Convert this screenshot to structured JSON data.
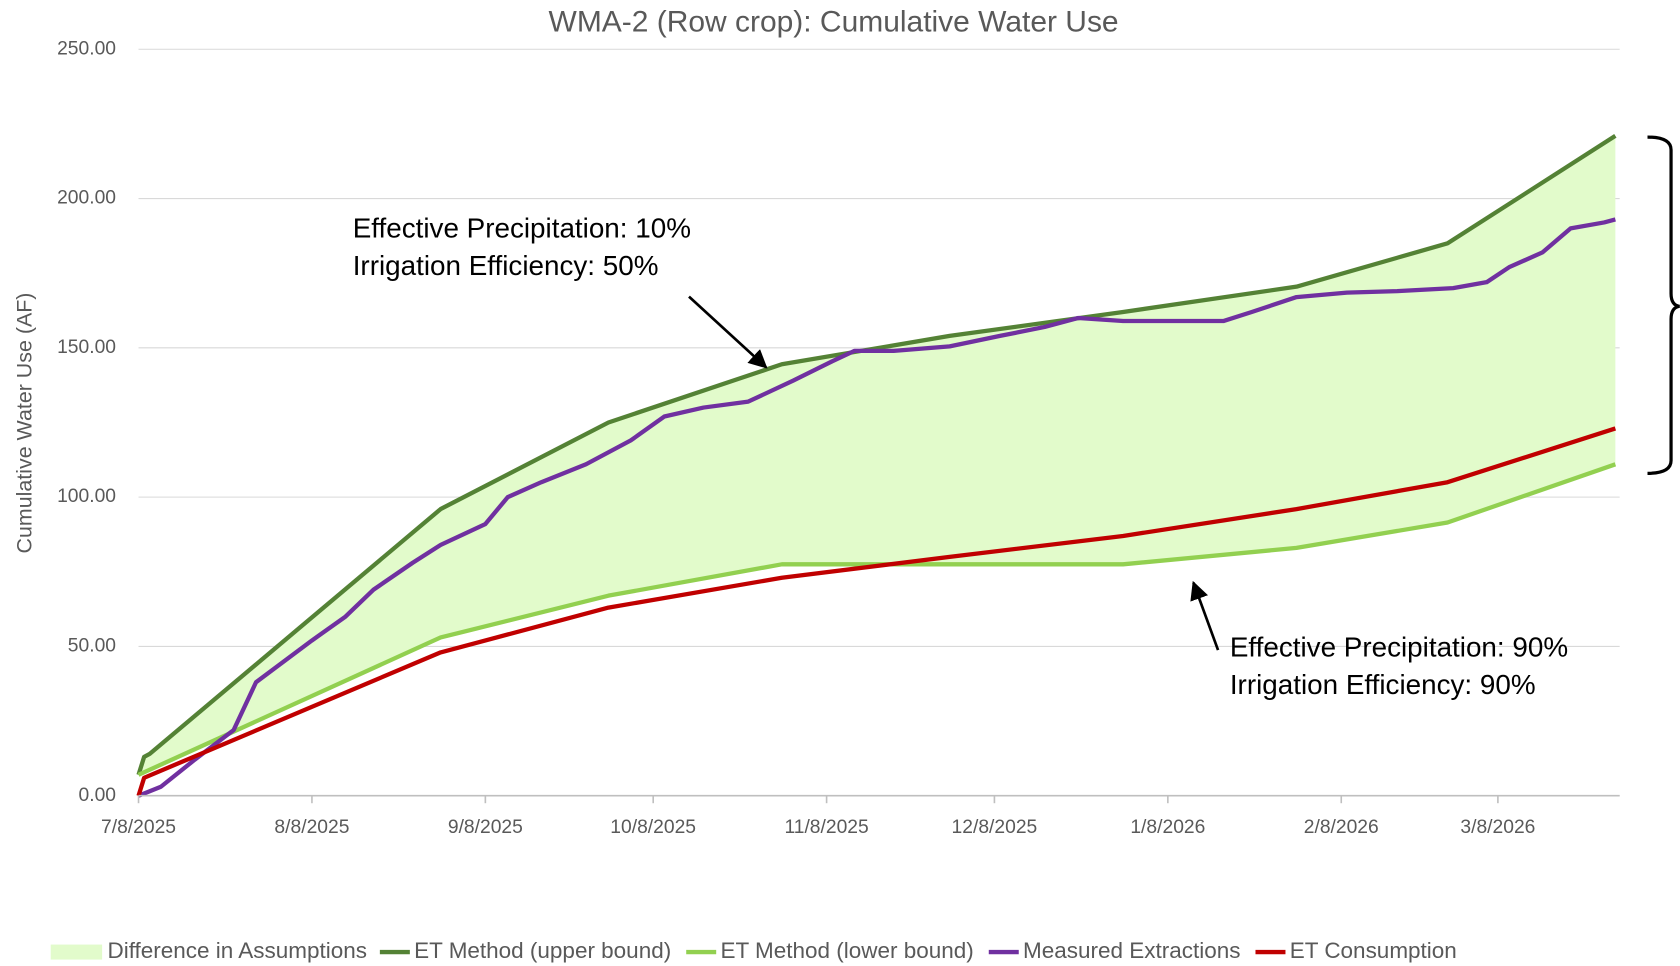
{
  "chart_data": {
    "type": "line",
    "title": "WMA-2 (Row crop): Cumulative Water Use",
    "y_label": "Cumulative Water Use (AF)",
    "xlim": [
      "2025-07-08",
      "2026-03-29"
    ],
    "xticks": [
      {
        "value": "2025-07-08",
        "label": "7/8/2025"
      },
      {
        "value": "2025-08-08",
        "label": "8/8/2025"
      },
      {
        "value": "2025-09-08",
        "label": "9/8/2025"
      },
      {
        "value": "2025-10-08",
        "label": "10/8/2025"
      },
      {
        "value": "2025-11-08",
        "label": "11/8/2025"
      },
      {
        "value": "2025-12-08",
        "label": "12/8/2025"
      },
      {
        "value": "2026-01-08",
        "label": "1/8/2026"
      },
      {
        "value": "2026-02-08",
        "label": "2/8/2026"
      },
      {
        "value": "2026-03-08",
        "label": "3/8/2026"
      }
    ],
    "ylim": [
      0,
      250
    ],
    "yticks": [
      {
        "value": 0,
        "label": "0.00"
      },
      {
        "value": 50,
        "label": "50.00"
      },
      {
        "value": 100,
        "label": "100.00"
      },
      {
        "value": 150,
        "label": "150.00"
      },
      {
        "value": 200,
        "label": "200.00"
      },
      {
        "value": 250,
        "label": "250.00"
      }
    ],
    "grid": true,
    "fill": {
      "name": "Difference in Assumptions",
      "color": "#e2fbcb"
    },
    "series": [
      {
        "name": "ET Method (upper bound)",
        "color": "#548235",
        "x": [
          "2025-07-08",
          "2025-07-09",
          "2025-07-10",
          "2025-08-31",
          "2025-09-30",
          "2025-10-31",
          "2025-11-30",
          "2025-12-31",
          "2026-01-31",
          "2026-02-27",
          "2026-03-29"
        ],
        "values": [
          7,
          13,
          14,
          96,
          125,
          144.5,
          154,
          162,
          170.5,
          185,
          221
        ]
      },
      {
        "name": "ET Method (lower bound)",
        "color": "#92d050",
        "x": [
          "2025-07-08",
          "2025-08-31",
          "2025-09-30",
          "2025-10-31",
          "2025-11-30",
          "2025-12-31",
          "2026-01-31",
          "2026-02-27",
          "2026-03-29"
        ],
        "values": [
          7,
          53,
          67,
          77.5,
          77.5,
          77.5,
          83,
          91.5,
          111
        ]
      },
      {
        "name": "Measured Extractions",
        "color": "#7030a0",
        "x": [
          "2025-07-08",
          "2025-07-12",
          "2025-07-18",
          "2025-07-25",
          "2025-07-29",
          "2025-08-08",
          "2025-08-14",
          "2025-08-19",
          "2025-08-26",
          "2025-08-31",
          "2025-09-08",
          "2025-09-12",
          "2025-09-18",
          "2025-09-26",
          "2025-10-04",
          "2025-10-10",
          "2025-10-17",
          "2025-10-25",
          "2025-11-02",
          "2025-11-09",
          "2025-11-13",
          "2025-11-20",
          "2025-11-30",
          "2025-12-09",
          "2025-12-17",
          "2025-12-23",
          "2025-12-31",
          "2026-01-08",
          "2026-01-18",
          "2026-01-23",
          "2026-01-31",
          "2026-02-09",
          "2026-02-18",
          "2026-02-28",
          "2026-03-06",
          "2026-03-10",
          "2026-03-16",
          "2026-03-21",
          "2026-03-27",
          "2026-03-29"
        ],
        "values": [
          0,
          3,
          12,
          22,
          38,
          52,
          60,
          69,
          78,
          84,
          91,
          100,
          105,
          111,
          119,
          127,
          130,
          132,
          139,
          145.5,
          149,
          149,
          150.5,
          154,
          157,
          160,
          159,
          159,
          159,
          162,
          167,
          168.5,
          169,
          170,
          172,
          177,
          182,
          190,
          192,
          193
        ]
      },
      {
        "name": "ET Consumption",
        "color": "#c00000",
        "x": [
          "2025-07-08",
          "2025-07-09",
          "2025-08-31",
          "2025-09-30",
          "2025-10-31",
          "2025-11-30",
          "2025-12-31",
          "2026-01-31",
          "2026-02-27",
          "2026-03-29"
        ],
        "values": [
          0,
          6,
          48,
          63,
          73,
          80,
          87,
          96,
          105,
          123
        ]
      }
    ],
    "annotations": [
      {
        "lines": [
          "Effective Precipitation: 10%",
          "Irrigation Efficiency: 50%"
        ]
      },
      {
        "lines": [
          "Effective Precipitation: 90%",
          "Irrigation Efficiency: 90%"
        ]
      }
    ]
  }
}
